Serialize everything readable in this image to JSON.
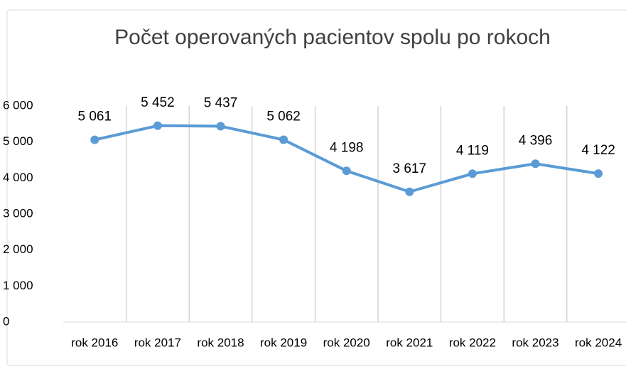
{
  "chart_data": {
    "type": "line",
    "title": "Počet operovaných pacientov spolu po rokoch",
    "categories": [
      "rok 2016",
      "rok 2017",
      "rok 2018",
      "rok 2019",
      "rok 2020",
      "rok 2021",
      "rok 2022",
      "rok 2023",
      "rok 2024"
    ],
    "series": [
      {
        "name": "Počet operovaných pacientov",
        "color": "#5b9bd5",
        "values": [
          5061,
          5452,
          5437,
          5062,
          4198,
          3617,
          4119,
          4396,
          4122
        ],
        "value_labels": [
          "5 061",
          "5 452",
          "5 437",
          "5 062",
          "4 198",
          "3 617",
          "4 119",
          "4 396",
          "4 122"
        ]
      }
    ],
    "ylim": [
      0,
      6000
    ],
    "yticks": [
      {
        "value": 0,
        "label": "0"
      },
      {
        "value": 1000,
        "label": "1 000"
      },
      {
        "value": 2000,
        "label": "2 000"
      },
      {
        "value": 3000,
        "label": "3 000"
      },
      {
        "value": 4000,
        "label": "4 000"
      },
      {
        "value": 5000,
        "label": "5 000"
      },
      {
        "value": 6000,
        "label": "6 000"
      }
    ],
    "grid": false
  }
}
